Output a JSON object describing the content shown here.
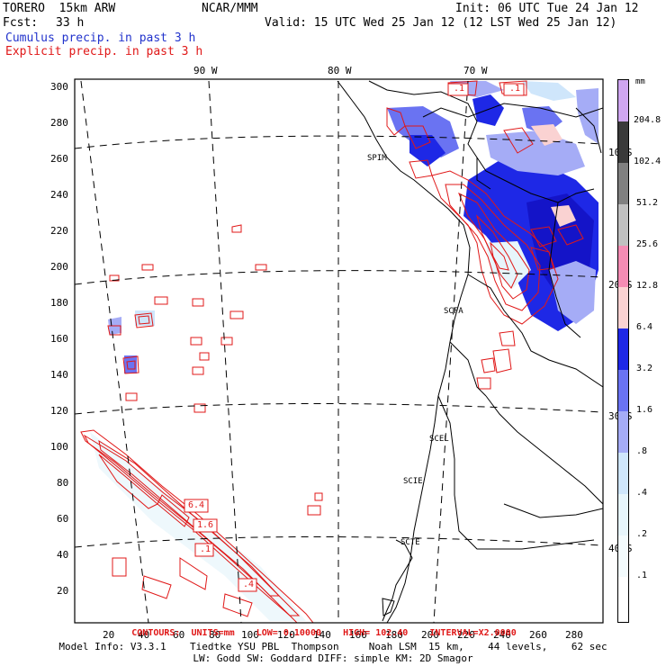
{
  "header": {
    "model": "TORERO  15km ARW",
    "center": "NCAR/MMM",
    "init": "Init: 06 UTC Tue 24 Jan 12",
    "fcst_label": "Fcst:",
    "fcst_value": "33 h",
    "valid": "Valid: 15 UTC Wed 25 Jan 12 (12 LST Wed 25 Jan 12)",
    "cumulus_title": "Cumulus precip. in past 3 h",
    "explicit_title": "Explicit precip. in past 3 h"
  },
  "map": {
    "lon_labels": [
      "90 W",
      "80 W",
      "70 W"
    ],
    "lat_labels": [
      "10 S",
      "20 S",
      "30 S",
      "40 S"
    ],
    "y_ticks": [
      "300",
      "280",
      "260",
      "240",
      "220",
      "200",
      "180",
      "160",
      "140",
      "120",
      "100",
      "80",
      "60",
      "40",
      "20"
    ],
    "x_ticks": [
      "20",
      "40",
      "60",
      "80",
      "100",
      "120",
      "140",
      "160",
      "180",
      "200",
      "220",
      "240",
      "260",
      "280"
    ],
    "station_labels": [
      "SPIM",
      "SCFA",
      "SCEL",
      "SCIE",
      "SCTE"
    ],
    "contour_tags": [
      ".1",
      ".1",
      "6.4",
      "1.6",
      ".1",
      ".4"
    ],
    "colors": {
      "cumulus_blue": "#2233cc",
      "explicit_red": "#e01818",
      "frame": "#000000"
    }
  },
  "colorbar": {
    "unit": "mm",
    "levels": [
      "204.8",
      "102.4",
      "51.2",
      "25.6",
      "12.8",
      "6.4",
      "3.2",
      "1.6",
      ".8",
      ".4",
      ".2",
      ".1"
    ],
    "colors": [
      "#cfa6f0",
      "#3a3a3a",
      "#808080",
      "#c0c0c0",
      "#f48cb4",
      "#fad2d2",
      "#1e28e6",
      "#6a73f2",
      "#a5acf6",
      "#cfe6fb",
      "#e7f5fb",
      "#f3fbfd",
      "#ffffff"
    ]
  },
  "footer": {
    "contours": "CONTOURS:  UNITS=mm    LOW= 0.10000    HIGH= 102.40    INTERVAL=X2.0000",
    "line1": "Model Info: V3.3.1    Tiedtke YSU PBL  Thompson     Noah LSM  15 km,    44 levels,    62 sec",
    "line2": "LW: Godd SW: Goddard DIFF: simple KM: 2D Smagor"
  }
}
